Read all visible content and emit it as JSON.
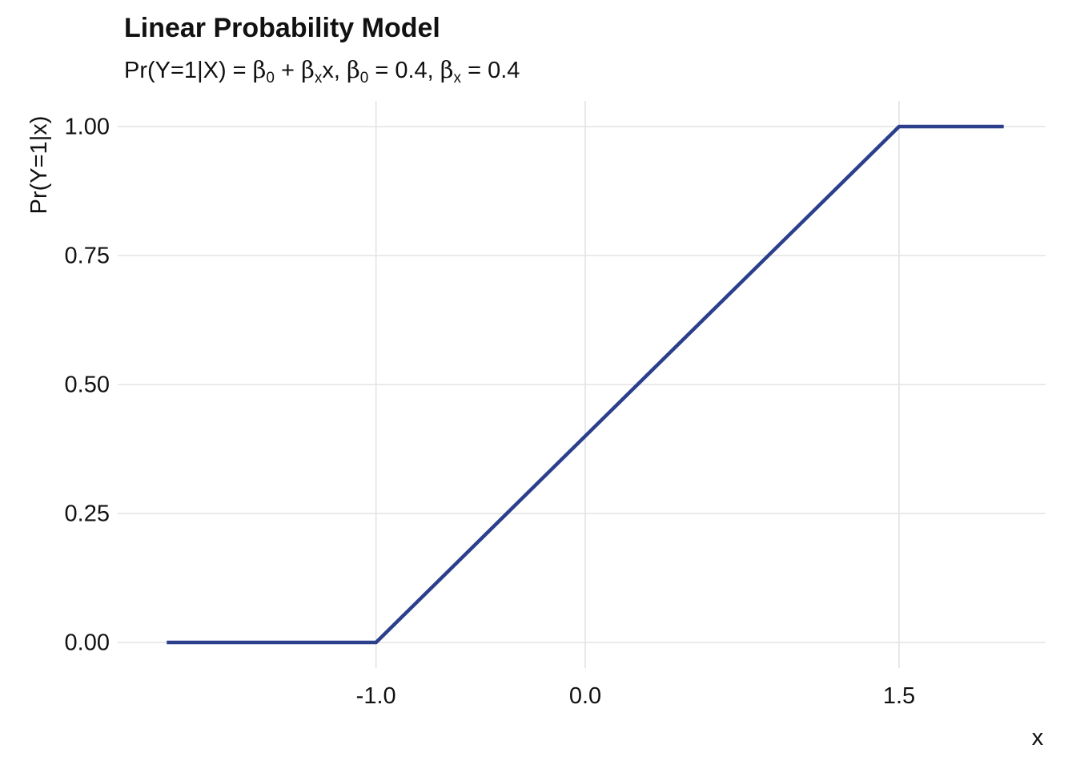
{
  "chart_data": {
    "type": "line",
    "title": "Linear Probability Model",
    "subtitle": {
      "lead": "Pr(Y=1|X) = ",
      "beta": "β",
      "sub_0": "0",
      "sub_x": "x",
      "plus": " + ",
      "x_term": "x, ",
      "eq_b0": " = 0.4, ",
      "eq_bx": " = 0.4"
    },
    "xlabel": "x",
    "ylabel": "Pr(Y=1|x)",
    "xlim": [
      -2,
      2.2
    ],
    "ylim": [
      -0.05,
      1.05
    ],
    "x_ticks": [
      -1.0,
      0.0,
      1.5
    ],
    "x_tick_labels": [
      "-1.0",
      "0.0",
      "1.5"
    ],
    "y_ticks": [
      0.0,
      0.25,
      0.5,
      0.75,
      1.0
    ],
    "y_tick_labels": [
      "0.00",
      "0.25",
      "0.50",
      "0.75",
      "1.00"
    ],
    "grid": true,
    "series": [
      {
        "x": [
          -2.0,
          -1.0,
          1.5,
          2.0
        ],
        "y": [
          0.0,
          0.0,
          1.0,
          1.0
        ]
      }
    ],
    "colors": {
      "line": "#2b3f8c",
      "grid": "#e3e3e3",
      "text": "#111111"
    }
  }
}
